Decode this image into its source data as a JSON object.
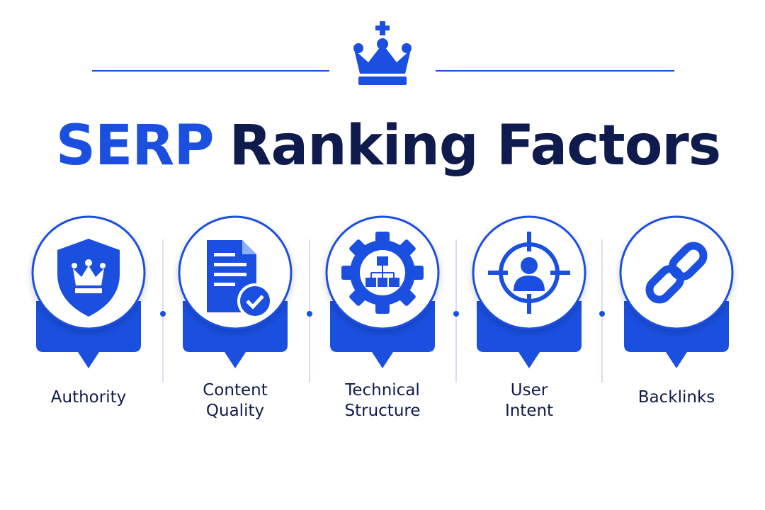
{
  "header": {
    "title_highlight": "SERP",
    "title_rest": "Ranking Factors"
  },
  "factors": [
    {
      "label": [
        "Authority"
      ]
    },
    {
      "label": [
        "Content",
        "Quality"
      ]
    },
    {
      "label": [
        "Technical",
        "Structure"
      ]
    },
    {
      "label": [
        "User",
        "Intent"
      ]
    },
    {
      "label": [
        "Backlinks"
      ]
    }
  ]
}
